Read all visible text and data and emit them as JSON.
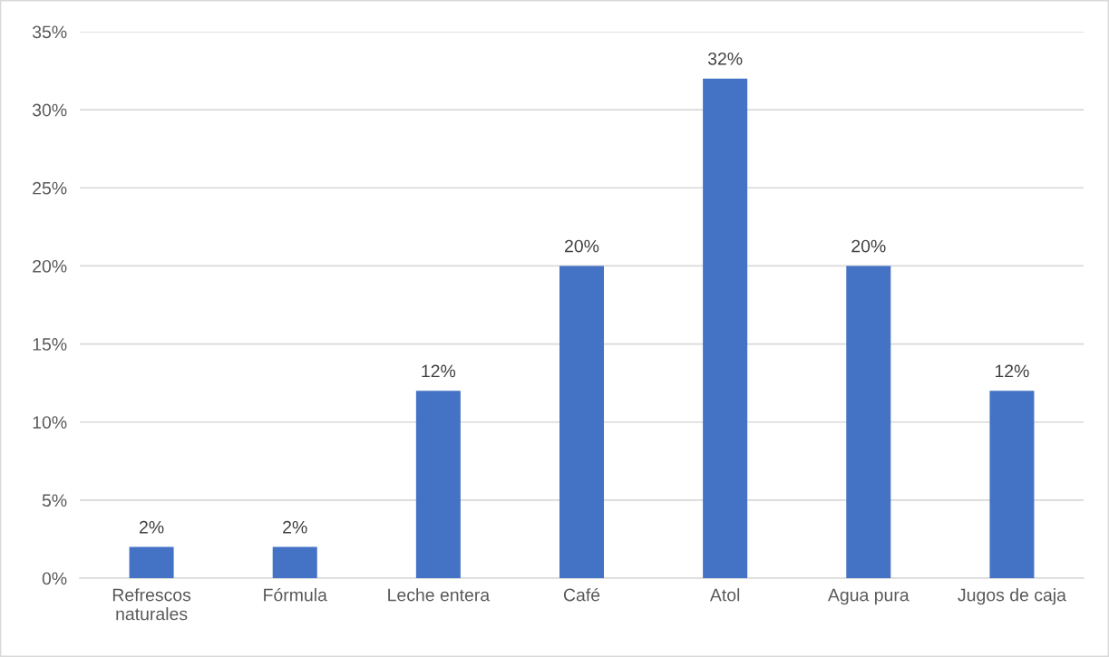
{
  "chart_data": {
    "type": "bar",
    "categories": [
      "Refrescos naturales",
      "Fórmula",
      "Leche entera",
      "Café",
      "Atol",
      "Agua pura",
      "Jugos de caja"
    ],
    "values": [
      2,
      2,
      12,
      20,
      32,
      20,
      12
    ],
    "value_labels": [
      "2%",
      "2%",
      "12%",
      "20%",
      "32%",
      "20%",
      "12%"
    ],
    "color": "#4472c4",
    "ylim": [
      0,
      35
    ],
    "yticks": [
      {
        "value": 0,
        "label": "0%"
      },
      {
        "value": 5,
        "label": "5%"
      },
      {
        "value": 10,
        "label": "10%"
      },
      {
        "value": 15,
        "label": "15%"
      },
      {
        "value": 20,
        "label": "20%"
      },
      {
        "value": 25,
        "label": "25%"
      },
      {
        "value": 30,
        "label": "30%"
      },
      {
        "value": 35,
        "label": "35%"
      }
    ],
    "grid": "y"
  }
}
